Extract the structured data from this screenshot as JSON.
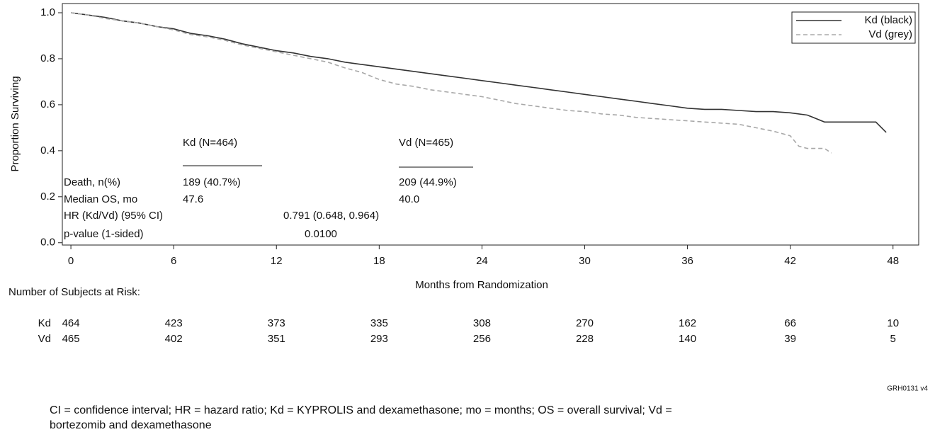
{
  "chart_data": {
    "type": "line",
    "xlabel": "Months from Randomization",
    "ylabel": "Proportion Surviving",
    "xlim": [
      -0.5,
      49.5
    ],
    "xticks": [
      0,
      6,
      12,
      18,
      24,
      30,
      36,
      42,
      48
    ],
    "ylim": [
      -0.01,
      1.04
    ],
    "yticks": [
      {
        "value": 0,
        "label": "0.0"
      },
      0.2,
      0.4,
      0.6,
      0.8,
      {
        "value": 1,
        "label": "1.0"
      }
    ],
    "legend": "upper right",
    "series": [
      {
        "name": "Kd (black)",
        "color": "#333333",
        "dash": false,
        "x": [
          0,
          1,
          2,
          3,
          4,
          5,
          6,
          7,
          8,
          9,
          10,
          11,
          12,
          13,
          14,
          15,
          16,
          17,
          18,
          19,
          20,
          21,
          22,
          23,
          24,
          25,
          26,
          27,
          28,
          29,
          30,
          31,
          32,
          33,
          34,
          35,
          36,
          37,
          38,
          39,
          40,
          41,
          42,
          43,
          44,
          45,
          46,
          47,
          47.6
        ],
        "values": [
          1.0,
          0.99,
          0.98,
          0.965,
          0.955,
          0.94,
          0.93,
          0.91,
          0.9,
          0.885,
          0.865,
          0.85,
          0.835,
          0.825,
          0.81,
          0.8,
          0.785,
          0.775,
          0.765,
          0.755,
          0.745,
          0.735,
          0.725,
          0.715,
          0.705,
          0.695,
          0.685,
          0.675,
          0.665,
          0.655,
          0.645,
          0.635,
          0.625,
          0.615,
          0.605,
          0.595,
          0.585,
          0.58,
          0.58,
          0.575,
          0.57,
          0.57,
          0.565,
          0.555,
          0.525,
          0.525,
          0.525,
          0.525,
          0.48
        ]
      },
      {
        "name": "Vd (grey)",
        "color": "#a8a8a8",
        "dash": true,
        "x": [
          0,
          1,
          2,
          3,
          4,
          5,
          6,
          7,
          8,
          9,
          10,
          11,
          12,
          13,
          14,
          15,
          16,
          17,
          18,
          19,
          20,
          21,
          22,
          23,
          24,
          25,
          26,
          27,
          28,
          29,
          30,
          31,
          32,
          33,
          34,
          35,
          36,
          37,
          38,
          39,
          40,
          41,
          42,
          42.5,
          43,
          44,
          44.4
        ],
        "values": [
          1.0,
          0.99,
          0.975,
          0.965,
          0.955,
          0.94,
          0.925,
          0.905,
          0.895,
          0.88,
          0.86,
          0.845,
          0.83,
          0.815,
          0.8,
          0.785,
          0.76,
          0.74,
          0.71,
          0.69,
          0.68,
          0.665,
          0.655,
          0.645,
          0.635,
          0.62,
          0.605,
          0.595,
          0.585,
          0.575,
          0.57,
          0.56,
          0.555,
          0.545,
          0.54,
          0.535,
          0.53,
          0.525,
          0.52,
          0.515,
          0.5,
          0.485,
          0.465,
          0.42,
          0.41,
          0.41,
          0.39
        ]
      }
    ],
    "stats_table": {
      "columns": [
        "Kd (N=464)",
        "Vd (N=465)"
      ],
      "rows": [
        [
          "Death, n(%)",
          "189 (40.7%)",
          "209 (44.9%)"
        ],
        [
          "Median OS, mo",
          "47.6",
          "40.0"
        ]
      ],
      "hr": [
        "HR (Kd/Vd) (95% CI)",
        "0.791 (0.648, 0.964)"
      ],
      "p": [
        "p-value (1-sided)",
        "0.0100"
      ]
    },
    "risk_table": {
      "title": "Number of Subjects at Risk:",
      "rows": [
        {
          "label": "Kd",
          "values": [
            464,
            423,
            373,
            335,
            308,
            270,
            162,
            66,
            10
          ]
        },
        {
          "label": "Vd",
          "values": [
            465,
            402,
            351,
            293,
            256,
            228,
            140,
            39,
            5
          ]
        }
      ]
    },
    "code": "GRH0131 v4",
    "footnote": [
      "CI = confidence interval; HR = hazard ratio; Kd = KYPROLIS and dexamethasone; mo = months; OS = overall survival; Vd =",
      "bortezomib and dexamethasone"
    ]
  }
}
